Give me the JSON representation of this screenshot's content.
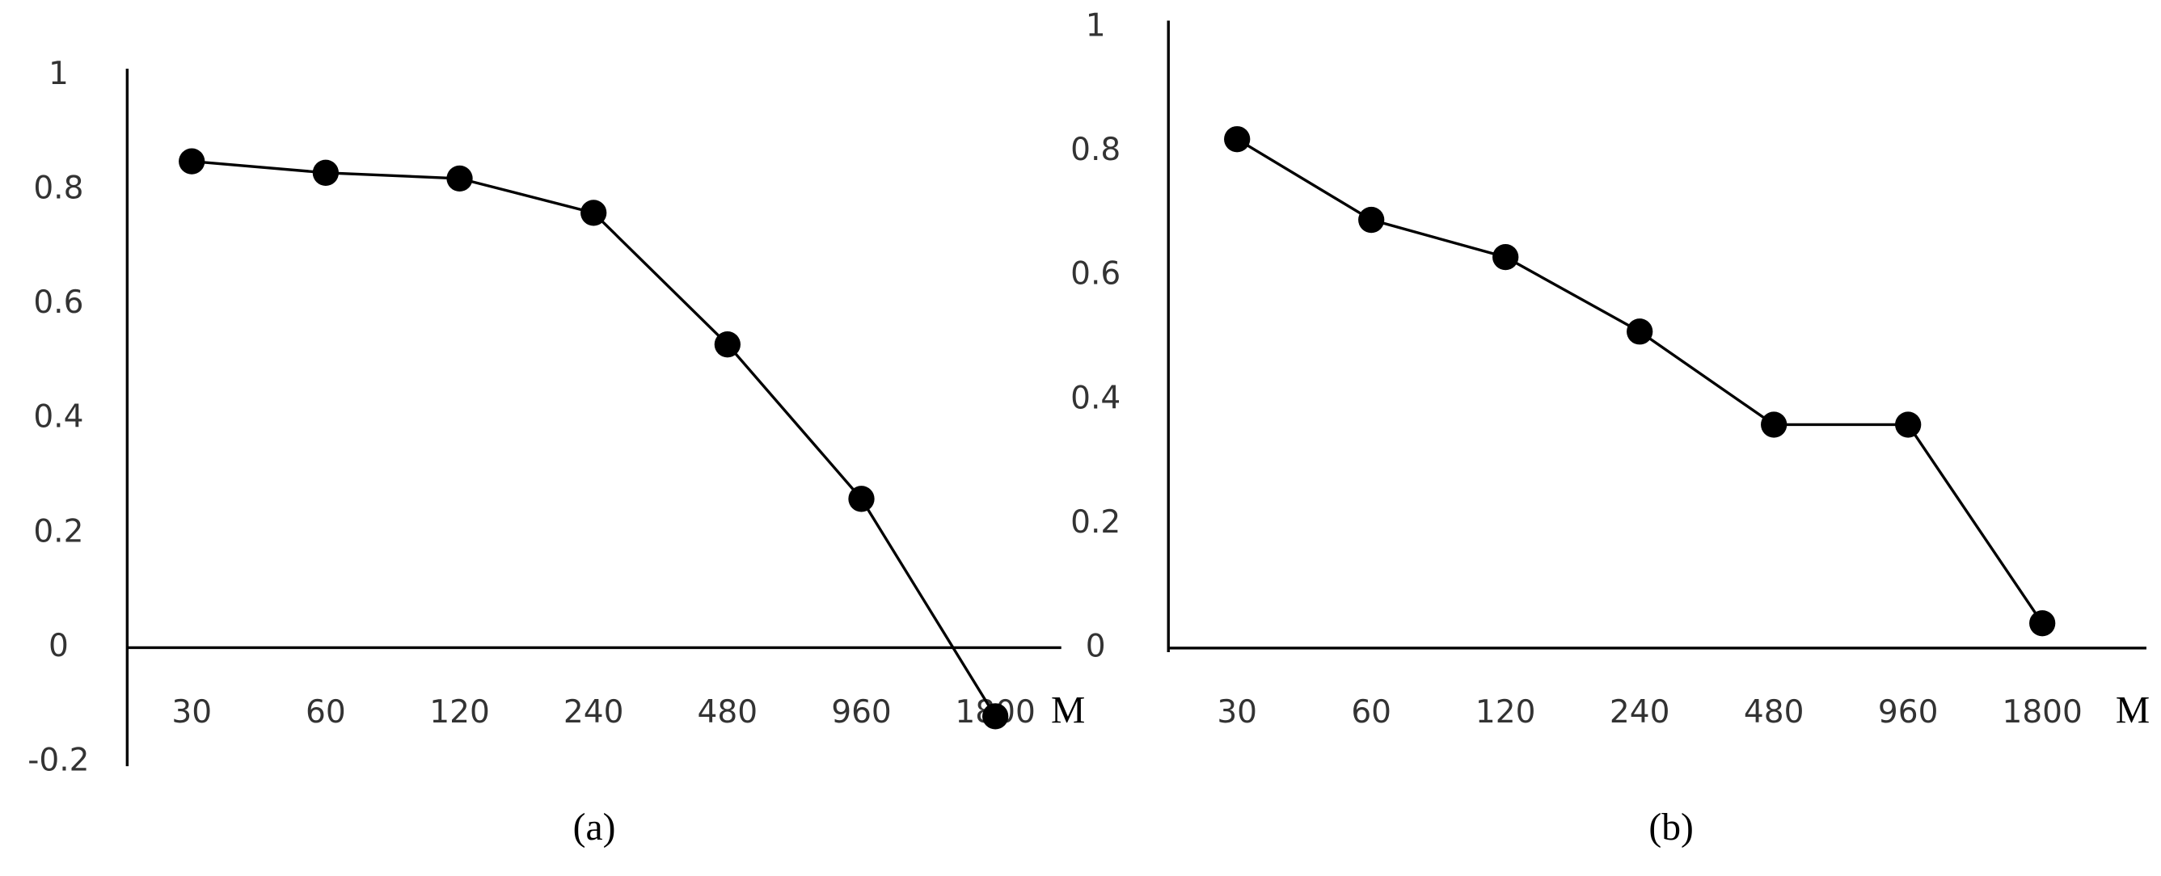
{
  "chart_data": [
    {
      "type": "line",
      "caption": "(a)",
      "x_label": "M",
      "categories": [
        "30",
        "60",
        "120",
        "240",
        "480",
        "960",
        "1800"
      ],
      "values": [
        0.85,
        0.83,
        0.82,
        0.76,
        0.53,
        0.26,
        -0.12
      ],
      "color": "#000000",
      "ylim": [
        -0.2,
        1
      ],
      "yticks": [
        -0.2,
        0,
        0.2,
        0.4,
        0.6,
        0.8,
        1
      ]
    },
    {
      "type": "line",
      "caption": "(b)",
      "x_label": "M",
      "categories": [
        "30",
        "60",
        "120",
        "240",
        "480",
        "960",
        "1800"
      ],
      "values": [
        0.82,
        0.69,
        0.63,
        0.51,
        0.36,
        0.36,
        0.04
      ],
      "color": "#000000",
      "ylim": [
        0,
        1
      ],
      "yticks": [
        0,
        0.2,
        0.4,
        0.6,
        0.8,
        1
      ]
    }
  ]
}
